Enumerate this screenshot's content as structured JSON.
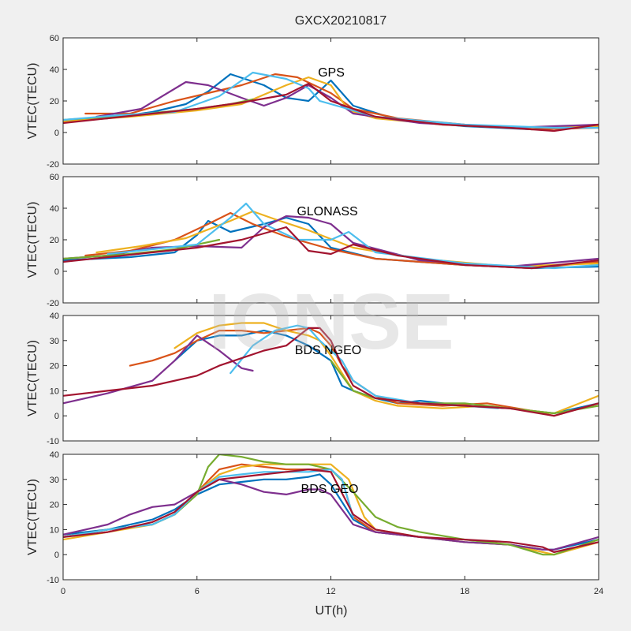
{
  "title": "GXCX20210817",
  "watermark": "IONSE",
  "xlabel": "UT(h)",
  "colors": [
    "#0072BD",
    "#D95319",
    "#EDB120",
    "#7E2F8E",
    "#77AC30",
    "#4DBEEE",
    "#A2142F"
  ],
  "chart_data": [
    {
      "type": "line",
      "annotation": "GPS",
      "ylabel": "VTEC(TECU)",
      "xlim": [
        0,
        24
      ],
      "ylim": [
        -20,
        60
      ],
      "xticks": [
        0,
        6,
        12,
        18,
        24
      ],
      "yticks": [
        -20,
        0,
        20,
        40,
        60
      ],
      "series": [
        {
          "x": [
            0,
            2,
            4,
            5.5,
            6.5,
            7.5,
            9,
            10,
            11,
            12,
            13,
            15,
            18,
            21,
            24
          ],
          "y": [
            7,
            9,
            13,
            18,
            26,
            37,
            30,
            22,
            20,
            33,
            17,
            8,
            4,
            2,
            5
          ]
        },
        {
          "x": [
            1,
            3,
            5,
            6.5,
            8,
            9.5,
            10.5,
            12,
            13,
            15,
            18,
            21,
            24
          ],
          "y": [
            12,
            12,
            20,
            25,
            30,
            37,
            35,
            25,
            15,
            9,
            5,
            2,
            3
          ]
        },
        {
          "x": [
            0,
            3,
            6,
            8,
            10,
            11,
            12,
            12.8,
            14,
            17,
            20,
            24
          ],
          "y": [
            7,
            10,
            14,
            18,
            30,
            35,
            30,
            14,
            9,
            5,
            3,
            4
          ]
        },
        {
          "x": [
            1.5,
            3.5,
            5.5,
            6.5,
            8,
            9,
            10,
            11,
            12,
            13,
            16,
            20,
            24
          ],
          "y": [
            10,
            15,
            32,
            30,
            22,
            17,
            22,
            30,
            22,
            12,
            6,
            3,
            5
          ]
        },
        {
          "x": [
            0,
            3,
            6,
            7.5,
            8.5
          ],
          "y": [
            8,
            11,
            15,
            18,
            21
          ]
        },
        {
          "x": [
            0,
            2.5,
            5,
            7,
            8.5,
            10,
            11,
            11.5,
            14,
            18,
            22,
            24
          ],
          "y": [
            8,
            11,
            13,
            23,
            38,
            34,
            28,
            20,
            10,
            5,
            3,
            3
          ]
        },
        {
          "x": [
            0,
            2,
            4,
            6,
            8,
            10,
            11,
            12,
            14,
            17,
            20,
            22,
            24
          ],
          "y": [
            6,
            9,
            12,
            15,
            19,
            24,
            31,
            20,
            10,
            5,
            3,
            1,
            5
          ]
        }
      ]
    },
    {
      "type": "line",
      "annotation": "GLONASS",
      "ylabel": "VTEC(TECU)",
      "xlim": [
        0,
        24
      ],
      "ylim": [
        -20,
        60
      ],
      "xticks": [
        0,
        6,
        12,
        18,
        24
      ],
      "yticks": [
        -20,
        0,
        20,
        40,
        60
      ],
      "series": [
        {
          "x": [
            0,
            3,
            5,
            6,
            6.5,
            7.5,
            9,
            10,
            11,
            12,
            14,
            18,
            21,
            24
          ],
          "y": [
            7,
            9,
            12,
            23,
            32,
            25,
            30,
            34,
            30,
            15,
            8,
            4,
            2,
            3
          ]
        },
        {
          "x": [
            1,
            3,
            5,
            6.5,
            7.5,
            8.5,
            10,
            12,
            14,
            18,
            21,
            24
          ],
          "y": [
            10,
            13,
            20,
            30,
            37,
            30,
            22,
            14,
            8,
            4,
            2,
            6
          ]
        },
        {
          "x": [
            1.5,
            3.5,
            5.5,
            7.5,
            8.5,
            9.5,
            11,
            13,
            16,
            20,
            24
          ],
          "y": [
            12,
            16,
            21,
            32,
            38,
            33,
            26,
            15,
            8,
            3,
            5
          ]
        },
        {
          "x": [
            0,
            2,
            4,
            6,
            8,
            9,
            10,
            11,
            12,
            13,
            16,
            20,
            24
          ],
          "y": [
            8,
            10,
            15,
            16,
            15,
            28,
            35,
            34,
            30,
            18,
            7,
            3,
            8
          ]
        },
        {
          "x": [
            0,
            3,
            5,
            6,
            7
          ],
          "y": [
            8,
            11,
            14,
            17,
            20
          ]
        },
        {
          "x": [
            2,
            4,
            6,
            7.5,
            8.2,
            9,
            10.5,
            12,
            12.8,
            14,
            18,
            22,
            24
          ],
          "y": [
            11,
            14,
            17,
            34,
            43,
            30,
            20,
            20,
            25,
            12,
            5,
            2,
            4
          ]
        },
        {
          "x": [
            0,
            2,
            4,
            6,
            8,
            10,
            11,
            12,
            13,
            15,
            18,
            21,
            24
          ],
          "y": [
            6,
            9,
            12,
            15,
            20,
            28,
            13,
            11,
            17,
            10,
            4,
            2,
            7
          ]
        }
      ]
    },
    {
      "type": "line",
      "annotation": "BDS NGEO",
      "ylabel": "VTEC(TECU)",
      "xlim": [
        0,
        24
      ],
      "ylim": [
        -10,
        40
      ],
      "xticks": [
        0,
        6,
        12,
        18,
        24
      ],
      "yticks": [
        -10,
        0,
        10,
        20,
        30,
        40
      ],
      "series": [
        {
          "x": [
            5,
            6,
            7,
            8,
            9,
            10,
            11,
            12,
            12.5,
            13,
            14,
            15,
            16,
            18,
            20,
            22,
            24
          ],
          "y": [
            22,
            30,
            32,
            32,
            34,
            32,
            28,
            22,
            12,
            10,
            7,
            5,
            6,
            4,
            3,
            1,
            5
          ]
        },
        {
          "x": [
            3,
            4,
            5,
            6,
            7,
            8,
            9,
            10,
            11,
            11.5,
            12,
            12.5,
            13,
            14,
            15,
            17,
            19,
            21,
            22,
            24
          ],
          "y": [
            20,
            22,
            25,
            30,
            34,
            34,
            33,
            34,
            35,
            33,
            28,
            20,
            14,
            8,
            5,
            4,
            5,
            2,
            0,
            5
          ]
        },
        {
          "x": [
            5,
            6,
            7,
            8,
            9,
            10,
            11,
            11.5,
            12,
            13,
            14,
            15,
            17,
            19,
            21,
            22,
            24
          ],
          "y": [
            27,
            33,
            36,
            37,
            37,
            34,
            32,
            30,
            24,
            10,
            6,
            4,
            3,
            4,
            2,
            1,
            8
          ]
        },
        {
          "x": [
            0,
            2,
            4,
            5,
            6,
            7,
            8,
            8.5
          ],
          "y": [
            5,
            9,
            14,
            22,
            32,
            26,
            19,
            18
          ]
        },
        {
          "x": [
            12,
            13,
            14,
            15,
            16,
            18,
            20,
            22,
            24
          ],
          "y": [
            22,
            10,
            7,
            6,
            5,
            5,
            3,
            1,
            4
          ]
        },
        {
          "x": [
            7.5,
            8.5,
            9.5,
            10.5,
            11,
            11.5,
            12.5,
            13,
            14,
            16,
            18,
            19.5
          ],
          "y": [
            17,
            28,
            34,
            36,
            35,
            30,
            22,
            14,
            8,
            5,
            4,
            3
          ]
        },
        {
          "x": [
            0,
            2,
            4,
            6,
            7,
            8,
            9,
            10,
            11,
            11.5,
            12,
            12.5,
            13,
            14,
            16,
            18,
            20,
            22,
            24
          ],
          "y": [
            8,
            10,
            12,
            16,
            20,
            23,
            26,
            28,
            35,
            35,
            30,
            20,
            12,
            7,
            5,
            4,
            3,
            0,
            5
          ]
        }
      ]
    },
    {
      "type": "line",
      "annotation": "BDS GEO",
      "ylabel": "VTEC(TECU)",
      "xlim": [
        0,
        24
      ],
      "ylim": [
        -10,
        40
      ],
      "xticks": [
        0,
        6,
        12,
        18,
        24
      ],
      "yticks": [
        -10,
        0,
        10,
        20,
        30,
        40
      ],
      "series": [
        {
          "x": [
            0,
            2,
            4,
            5,
            6,
            7,
            8,
            9,
            10,
            11,
            11.5,
            12,
            13,
            14,
            16,
            18,
            20,
            21.5,
            22,
            24
          ],
          "y": [
            8,
            10,
            14,
            18,
            24,
            28,
            29,
            30,
            30,
            31,
            32,
            28,
            14,
            9,
            7,
            5,
            4,
            2,
            2,
            6
          ]
        },
        {
          "x": [
            0,
            2,
            4,
            5,
            6,
            7,
            8,
            9,
            10,
            11,
            12,
            12.5,
            13,
            14,
            16,
            17.5
          ],
          "y": [
            7,
            10,
            12,
            16,
            25,
            34,
            36,
            35,
            34,
            34,
            34,
            30,
            15,
            9,
            7,
            6
          ]
        },
        {
          "x": [
            0,
            2,
            4,
            5,
            6,
            7,
            8,
            9,
            10,
            11,
            12,
            12.8,
            13.5,
            14,
            16,
            18,
            20,
            21.5,
            22,
            24
          ],
          "y": [
            6,
            9,
            12,
            16,
            25,
            32,
            35,
            36,
            36,
            36,
            36,
            30,
            15,
            10,
            7,
            5,
            4,
            1,
            0,
            5
          ]
        },
        {
          "x": [
            0,
            1,
            2,
            3,
            4,
            5,
            6,
            7,
            8,
            9,
            10,
            11,
            11.5,
            12,
            13,
            14,
            16,
            18,
            20,
            21.5,
            22,
            24
          ],
          "y": [
            8,
            10,
            12,
            16,
            19,
            20,
            25,
            30,
            28,
            25,
            24,
            26,
            26,
            24,
            12,
            9,
            7,
            5,
            4,
            2,
            2,
            7
          ]
        },
        {
          "x": [
            0,
            2,
            4,
            5,
            6,
            6.5,
            7,
            8,
            9,
            10,
            11,
            12,
            13,
            14,
            15,
            16,
            18,
            20,
            21.5,
            22,
            24
          ],
          "y": [
            7,
            10,
            12,
            16,
            24,
            35,
            40,
            39,
            37,
            36,
            36,
            34,
            25,
            15,
            11,
            9,
            6,
            4,
            0,
            0,
            6
          ]
        },
        {
          "x": [
            0,
            2,
            4,
            5,
            6,
            7,
            8,
            9,
            10,
            11,
            12,
            12.5,
            13
          ],
          "y": [
            7,
            10,
            12,
            16,
            25,
            31,
            32,
            33,
            33,
            33,
            34,
            30,
            15
          ]
        },
        {
          "x": [
            0,
            2,
            4,
            5,
            6,
            7,
            8,
            9,
            10,
            11,
            12,
            13,
            14,
            16,
            18,
            20,
            21.5,
            22,
            24
          ],
          "y": [
            7,
            9,
            13,
            17,
            25,
            30,
            31,
            32,
            33,
            34,
            33,
            16,
            10,
            7,
            6,
            5,
            3,
            1,
            5
          ]
        }
      ]
    }
  ]
}
